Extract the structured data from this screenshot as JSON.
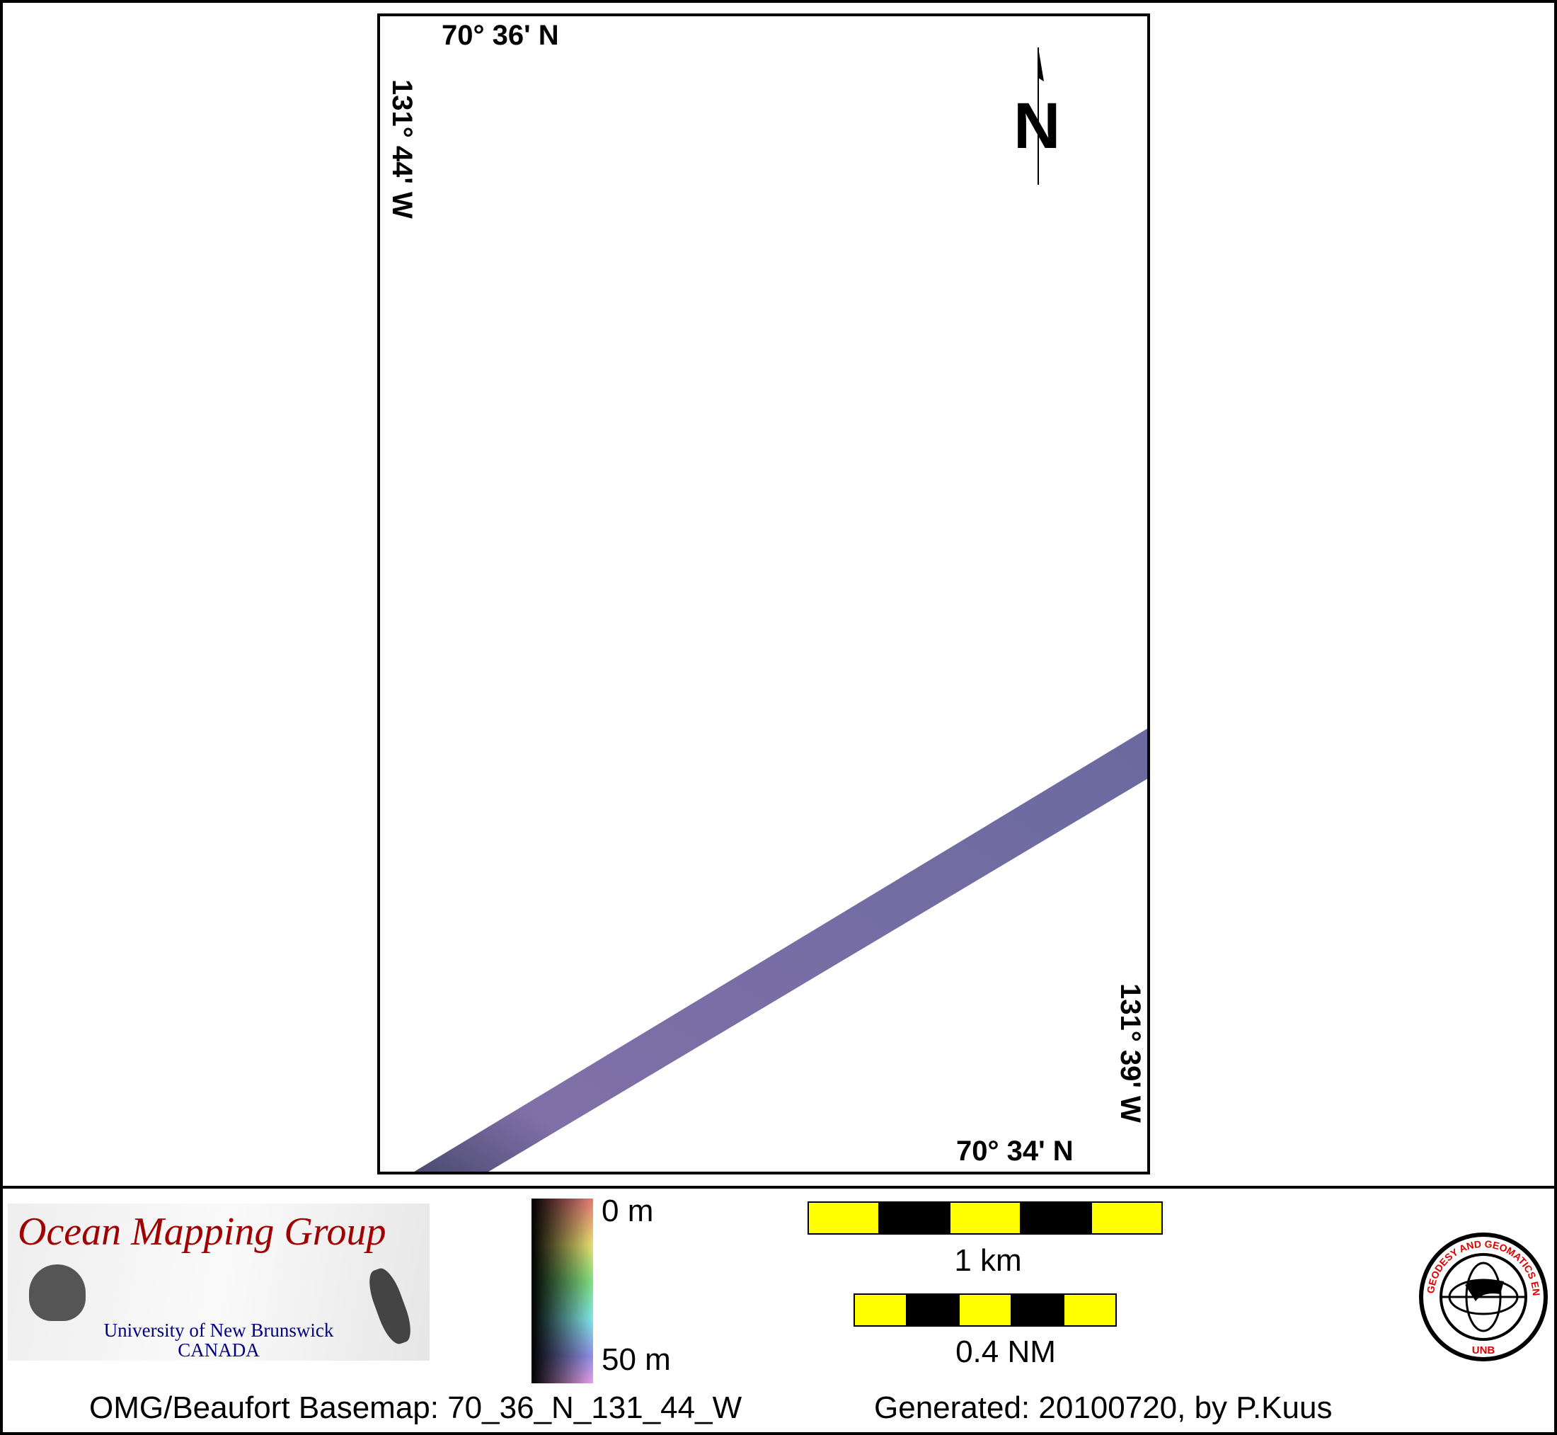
{
  "map": {
    "top_lat_label": "70° 36' N",
    "bottom_lat_label": "70° 34' N",
    "left_lon_label": "131° 44' W",
    "right_lon_label": "131° 39' W",
    "north_label": "N",
    "swath_color": "#6e6aa0"
  },
  "legend": {
    "colorbar_top": "0 m",
    "colorbar_bottom": "50 m",
    "scale_km": "1 km",
    "scale_nm": "0.4 NM",
    "scale_colors": [
      "#ffff00",
      "#000000"
    ]
  },
  "logos": {
    "omg_title": "Ocean Mapping Group",
    "omg_university": "University of New Brunswick",
    "omg_country": "CANADA",
    "unb_ring": "GEODESY AND GEOMATICS ENGINEERING",
    "unb_short": "UNB"
  },
  "footer": {
    "basemap": "OMG/Beaufort Basemap: 70_36_N_131_44_W",
    "generated": "Generated: 20100720, by P.Kuus"
  }
}
